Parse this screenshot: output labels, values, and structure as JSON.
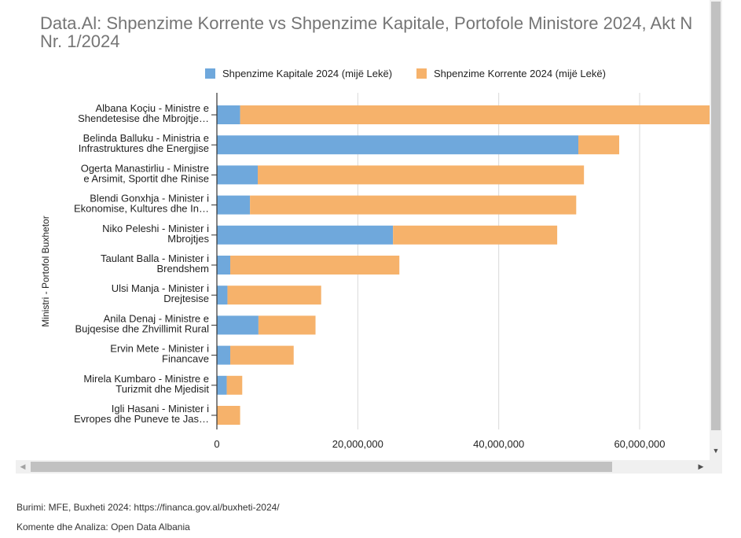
{
  "chart_data": {
    "type": "bar",
    "orientation": "horizontal",
    "stacked": true,
    "title_line1": "Data.Al: Shpenzime Korrente vs Shpenzime Kapitale, Portofole Ministore 2024, Akt N",
    "title_line2": "Nr. 1/2024",
    "ylabel": "Ministri - Portofol Buxhetor",
    "xlabel": "",
    "xlim": [
      0,
      70000000
    ],
    "x_ticks": [
      0,
      20000000,
      40000000,
      60000000
    ],
    "x_tick_labels": [
      "0",
      "20,000,000",
      "40,000,000",
      "60,000,000"
    ],
    "grid": true,
    "legend_position": "top",
    "categories": [
      [
        "Albana Koçiu - Ministre e",
        "Shendetesise dhe Mbrojtje…"
      ],
      [
        "Belinda Balluku - Ministria e",
        "Infrastruktures dhe Energjise"
      ],
      [
        "Ogerta Manastirliu - Ministre",
        "e Arsimit, Sportit dhe Rinise"
      ],
      [
        "Blendi Gonxhja - Minister i",
        "Ekonomise, Kultures dhe In…"
      ],
      [
        "Niko Peleshi - Minister i",
        "Mbrojtjes"
      ],
      [
        "Taulant Balla - Minister i",
        "Brendshem"
      ],
      [
        "Ulsi Manja - Minister i",
        "Drejtesise"
      ],
      [
        "Anila Denaj - Ministre e",
        "Bujqesise dhe Zhvillimit Rural"
      ],
      [
        "Ervin Mete - Minister i",
        "Financave"
      ],
      [
        "Mirela Kumbaro - Ministre e",
        "Turizmit dhe Mjedisit"
      ],
      [
        "Igli Hasani - Minister i",
        "Evropes dhe Puneve te Jas…"
      ]
    ],
    "series": [
      {
        "name": "Shpenzime Kapitale 2024 (mijë Lekë)",
        "color": "#6fa8dc",
        "values": [
          3300000,
          51300000,
          5800000,
          4700000,
          25000000,
          1900000,
          1500000,
          5900000,
          1900000,
          1400000,
          0
        ]
      },
      {
        "name": "Shpenzime Korrente 2024 (mijë Lekë)",
        "color": "#f6b26b",
        "values": [
          67000000,
          5800000,
          46300000,
          46300000,
          23300000,
          24000000,
          13300000,
          8100000,
          9000000,
          2200000,
          3300000
        ]
      }
    ]
  },
  "footer": {
    "source": "Burimi: MFE, Buxheti 2024: https://financa.gov.al/buxheti-2024/",
    "comment": "Komente dhe Analiza: Open Data Albania"
  },
  "scrollbars": {
    "up_arrow": "▲",
    "down_arrow": "▼",
    "left_arrow": "◀",
    "right_arrow": "▶"
  }
}
